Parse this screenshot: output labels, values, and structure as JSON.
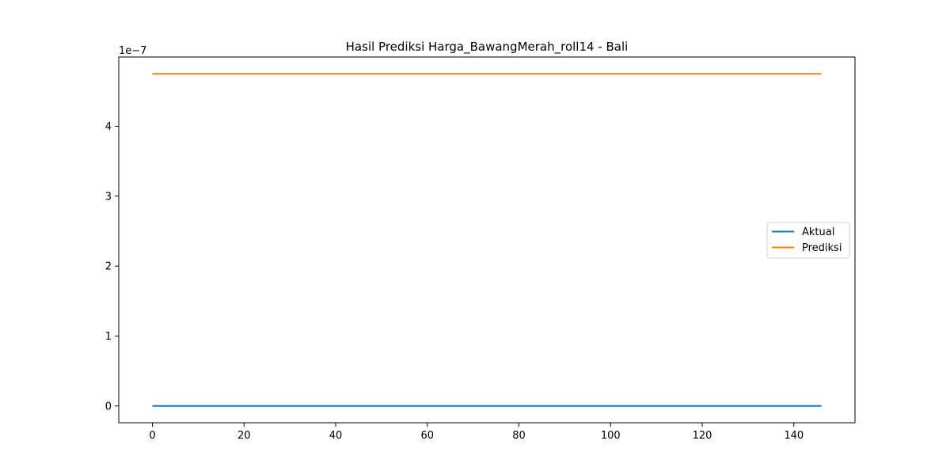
{
  "chart_data": {
    "type": "line",
    "title": "Hasil Prediksi Harga_BawangMerah_roll14 - Bali",
    "xlabel": "",
    "ylabel": "",
    "y_offset_text": "1e−7",
    "y_scale_factor": 1e-07,
    "xlim": [
      -7.35,
      153.35
    ],
    "ylim": [
      -2.4e-08,
      4.99e-07
    ],
    "x_ticks": [
      0,
      20,
      40,
      60,
      80,
      100,
      120,
      140
    ],
    "x_tick_labels": [
      "0",
      "20",
      "40",
      "60",
      "80",
      "100",
      "120",
      "140"
    ],
    "y_ticks": [
      0,
      1e-07,
      2e-07,
      3e-07,
      4e-07
    ],
    "y_tick_labels": [
      "0",
      "1",
      "2",
      "3",
      "4"
    ],
    "grid": false,
    "legend_position": "center-right",
    "series": [
      {
        "name": "Aktual",
        "color": "#1f77b4",
        "x": [
          0,
          146
        ],
        "values": [
          0,
          0
        ]
      },
      {
        "name": "Prediksi",
        "color": "#ff7f0e",
        "x": [
          0,
          146
        ],
        "values": [
          4.75e-07,
          4.75e-07
        ]
      }
    ]
  }
}
